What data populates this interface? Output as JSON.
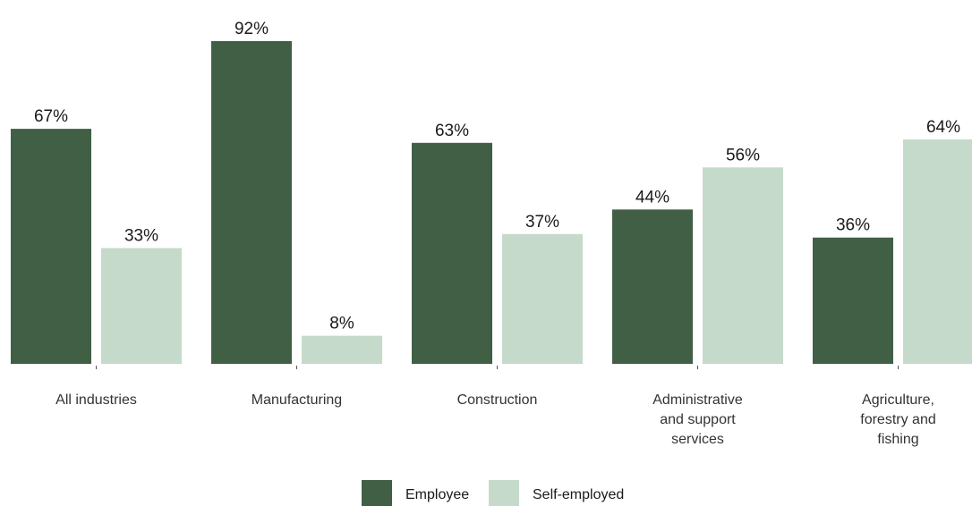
{
  "chart_data": {
    "type": "bar",
    "categories": [
      [
        "All industries"
      ],
      [
        "Manufacturing"
      ],
      [
        "Construction"
      ],
      [
        "Administrative",
        "and support",
        "services"
      ],
      [
        "Agriculture,",
        "forestry and",
        "fishing"
      ]
    ],
    "series": [
      {
        "name": "Employee",
        "color": "#415f45",
        "values": [
          67,
          92,
          63,
          44,
          36
        ],
        "labels": [
          "67%",
          "92%",
          "63%",
          "44%",
          "36%"
        ]
      },
      {
        "name": "Self-employed",
        "color": "#c5dacb",
        "values": [
          33,
          8,
          37,
          56,
          64
        ],
        "labels": [
          "33%",
          "8%",
          "37%",
          "56%",
          "64%"
        ]
      }
    ],
    "ylim": [
      0,
      100
    ],
    "grid": false,
    "legend_position": "bottom-center"
  }
}
